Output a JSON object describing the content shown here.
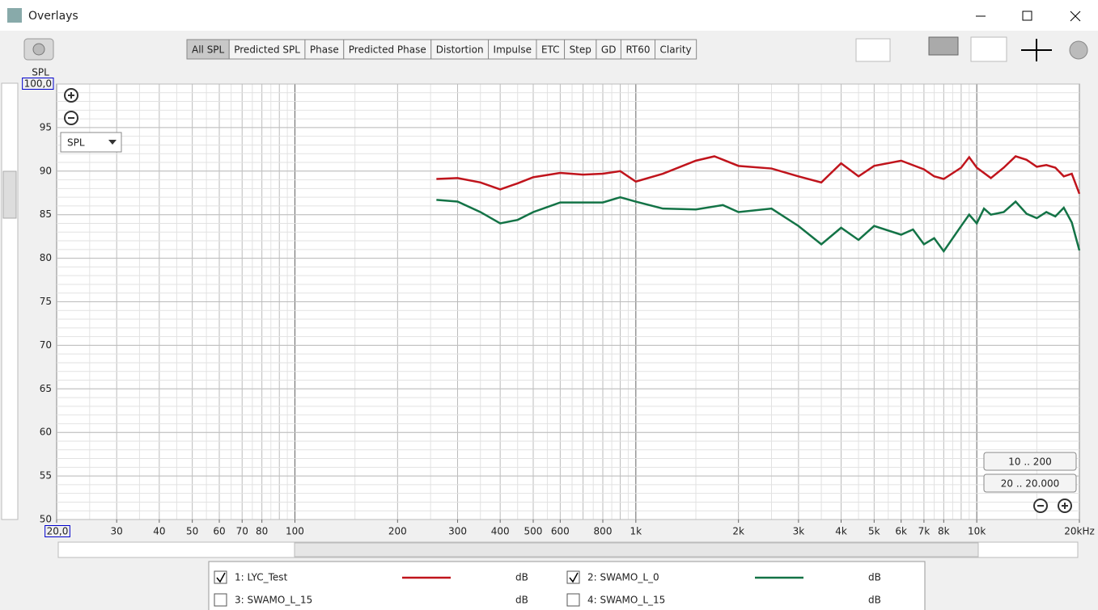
{
  "window": {
    "title": "Overlays"
  },
  "toolbar": {
    "tabs": [
      "All SPL",
      "Predicted SPL",
      "Phase",
      "Predicted Phase",
      "Distortion",
      "Impulse",
      "ETC",
      "Step",
      "GD",
      "RT60",
      "Clarity"
    ],
    "active": 0
  },
  "controls": {
    "dropdown": "SPL",
    "range_buttons": [
      "10 .. 200",
      "20 .. 20.000"
    ]
  },
  "chart_data": {
    "type": "line",
    "y_label": "SPL",
    "log_x": true,
    "grid": true,
    "xlim": [
      20,
      20000
    ],
    "ylim": [
      50,
      100
    ],
    "xticks": [
      {
        "value": 20,
        "label": "20,0"
      },
      30,
      40,
      50,
      60,
      70,
      80,
      100,
      200,
      300,
      400,
      500,
      600,
      800,
      {
        "value": 1000,
        "label": "1k"
      },
      {
        "value": 2000,
        "label": "2k"
      },
      {
        "value": 3000,
        "label": "3k"
      },
      {
        "value": 4000,
        "label": "4k"
      },
      {
        "value": 5000,
        "label": "5k"
      },
      {
        "value": 6000,
        "label": "6k"
      },
      {
        "value": 7000,
        "label": "7k"
      },
      {
        "value": 8000,
        "label": "8k"
      },
      {
        "value": 10000,
        "label": "10k"
      },
      {
        "value": 20000,
        "label": "20kHz"
      }
    ],
    "yticks": [
      50,
      55,
      60,
      65,
      70,
      75,
      80,
      85,
      90,
      95,
      {
        "value": 100,
        "label": "100,0"
      }
    ],
    "series": [
      {
        "name": "1: LYC_Test",
        "unit": "dB",
        "checked": true,
        "color": "#c0141c",
        "x": [
          260,
          300,
          350,
          400,
          450,
          500,
          600,
          700,
          800,
          900,
          1000,
          1200,
          1500,
          1700,
          2000,
          2500,
          3000,
          3500,
          4000,
          4500,
          5000,
          6000,
          7000,
          7500,
          8000,
          9000,
          9500,
          10000,
          11000,
          12000,
          13000,
          14000,
          15000,
          16000,
          17000,
          18000,
          19000,
          20000
        ],
        "values": [
          89.1,
          89.2,
          88.7,
          87.9,
          88.6,
          89.3,
          89.8,
          89.6,
          89.7,
          90.0,
          88.8,
          89.7,
          91.2,
          91.7,
          90.6,
          90.3,
          89.4,
          88.7,
          90.9,
          89.4,
          90.6,
          91.2,
          90.2,
          89.4,
          89.1,
          90.4,
          91.6,
          90.4,
          89.2,
          90.4,
          91.7,
          91.3,
          90.5,
          90.7,
          90.4,
          89.4,
          89.7,
          87.4
        ]
      },
      {
        "name": "2: SWAMO_L_0",
        "unit": "dB",
        "checked": true,
        "color": "#137346",
        "x": [
          260,
          300,
          350,
          400,
          450,
          500,
          600,
          700,
          800,
          900,
          1000,
          1200,
          1500,
          1800,
          2000,
          2500,
          3000,
          3500,
          4000,
          4500,
          5000,
          6000,
          6500,
          7000,
          7500,
          8000,
          9000,
          9500,
          10000,
          10500,
          11000,
          12000,
          13000,
          14000,
          15000,
          16000,
          17000,
          18000,
          19000,
          20000
        ],
        "values": [
          86.7,
          86.5,
          85.3,
          84.0,
          84.4,
          85.3,
          86.4,
          86.4,
          86.4,
          87.0,
          86.5,
          85.7,
          85.6,
          86.1,
          85.3,
          85.7,
          83.7,
          81.6,
          83.5,
          82.1,
          83.7,
          82.7,
          83.3,
          81.6,
          82.3,
          80.8,
          83.7,
          85.0,
          84.0,
          85.7,
          85.0,
          85.3,
          86.5,
          85.1,
          84.6,
          85.3,
          84.8,
          85.8,
          84.1,
          80.9
        ]
      },
      {
        "name": "3: SWAMO_L_15",
        "unit": "dB",
        "checked": false,
        "color": "#6a6ad8",
        "x": [],
        "values": []
      },
      {
        "name": "4: SWAMO_L_15",
        "unit": "dB",
        "checked": false,
        "color": "#e88a1a",
        "x": [],
        "values": []
      }
    ]
  }
}
